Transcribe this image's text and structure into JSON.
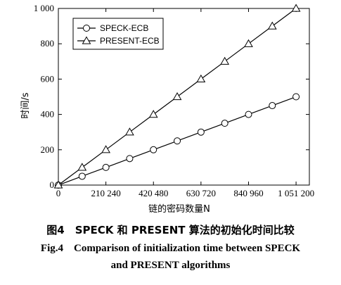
{
  "chart_data": {
    "type": "line",
    "title": "",
    "xlabel": "链的密码数量N",
    "ylabel": "时间/s",
    "xlim": [
      0,
      1110000
    ],
    "ylim": [
      0,
      1000
    ],
    "xticks": [
      0,
      210240,
      420480,
      630720,
      840960,
      1051200
    ],
    "xtick_labels": [
      "0",
      "210 240",
      "420 480",
      "630 720",
      "840 960",
      "1 051 200"
    ],
    "yticks": [
      0,
      200,
      400,
      600,
      800,
      1000
    ],
    "ytick_labels": [
      "0",
      "200",
      "400",
      "600",
      "800",
      "1 000"
    ],
    "legend_position": "top-left",
    "grid": false,
    "series": [
      {
        "name": "SPECK-ECB",
        "marker": "circle",
        "x": [
          0,
          105120,
          210240,
          315360,
          420480,
          525600,
          630720,
          735840,
          840960,
          946080,
          1051200
        ],
        "y": [
          0,
          50,
          100,
          150,
          200,
          250,
          300,
          350,
          400,
          450,
          500
        ]
      },
      {
        "name": "PRESENT-ECB",
        "marker": "triangle",
        "x": [
          0,
          105120,
          210240,
          315360,
          420480,
          525600,
          630720,
          735840,
          840960,
          946080,
          1051200
        ],
        "y": [
          0,
          100,
          200,
          300,
          400,
          500,
          600,
          700,
          800,
          900,
          1000
        ]
      }
    ]
  },
  "caption": {
    "cn": "图4　SPECK 和 PRESENT 算法的初始化时间比较",
    "en_line1": "Fig.4　Comparison of initialization time between SPECK",
    "en_line2": "and PRESENT algorithms"
  }
}
